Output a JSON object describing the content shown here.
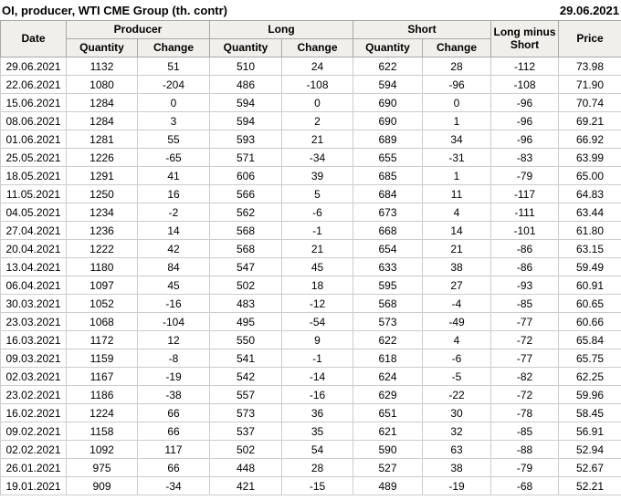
{
  "title": "OI, producer, WTI CME Group (th. contr)",
  "report_date": "29.06.2021",
  "colors": {
    "positive": "#149a14",
    "negative": "#cc2222",
    "header_bg": "#f1efec"
  },
  "table": {
    "headers": {
      "date": "Date",
      "producer_group": "Producer",
      "long_group": "Long",
      "short_group": "Short",
      "quantity": "Quantity",
      "change": "Change",
      "long_minus_short": "Long minus Short",
      "price": "Price"
    },
    "rows": [
      {
        "date": "29.06.2021",
        "producer_quantity": 1132,
        "producer_change": 51,
        "long_quantity": 510,
        "long_change": 24,
        "short_quantity": 622,
        "short_change": 28,
        "long_minus_short": -112,
        "price": "73.98"
      },
      {
        "date": "22.06.2021",
        "producer_quantity": 1080,
        "producer_change": -204,
        "long_quantity": 486,
        "long_change": -108,
        "short_quantity": 594,
        "short_change": -96,
        "long_minus_short": -108,
        "price": "71.90"
      },
      {
        "date": "15.06.2021",
        "producer_quantity": 1284,
        "producer_change": 0,
        "long_quantity": 594,
        "long_change": 0,
        "short_quantity": 690,
        "short_change": 0,
        "long_minus_short": -96,
        "price": "70.74"
      },
      {
        "date": "08.06.2021",
        "producer_quantity": 1284,
        "producer_change": 3,
        "long_quantity": 594,
        "long_change": 2,
        "short_quantity": 690,
        "short_change": 1,
        "long_minus_short": -96,
        "price": "69.21"
      },
      {
        "date": "01.06.2021",
        "producer_quantity": 1281,
        "producer_change": 55,
        "long_quantity": 593,
        "long_change": 21,
        "short_quantity": 689,
        "short_change": 34,
        "long_minus_short": -96,
        "price": "66.92"
      },
      {
        "date": "25.05.2021",
        "producer_quantity": 1226,
        "producer_change": -65,
        "long_quantity": 571,
        "long_change": -34,
        "short_quantity": 655,
        "short_change": -31,
        "long_minus_short": -83,
        "price": "63.99"
      },
      {
        "date": "18.05.2021",
        "producer_quantity": 1291,
        "producer_change": 41,
        "long_quantity": 606,
        "long_change": 39,
        "short_quantity": 685,
        "short_change": 1,
        "long_minus_short": -79,
        "price": "65.00"
      },
      {
        "date": "11.05.2021",
        "producer_quantity": 1250,
        "producer_change": 16,
        "long_quantity": 566,
        "long_change": 5,
        "short_quantity": 684,
        "short_change": 11,
        "long_minus_short": -117,
        "price": "64.83"
      },
      {
        "date": "04.05.2021",
        "producer_quantity": 1234,
        "producer_change": -2,
        "long_quantity": 562,
        "long_change": -6,
        "short_quantity": 673,
        "short_change": 4,
        "long_minus_short": -111,
        "price": "63.44"
      },
      {
        "date": "27.04.2021",
        "producer_quantity": 1236,
        "producer_change": 14,
        "long_quantity": 568,
        "long_change": -1,
        "short_quantity": 668,
        "short_change": 14,
        "long_minus_short": -101,
        "price": "61.80"
      },
      {
        "date": "20.04.2021",
        "producer_quantity": 1222,
        "producer_change": 42,
        "long_quantity": 568,
        "long_change": 21,
        "short_quantity": 654,
        "short_change": 21,
        "long_minus_short": -86,
        "price": "63.15"
      },
      {
        "date": "13.04.2021",
        "producer_quantity": 1180,
        "producer_change": 84,
        "long_quantity": 547,
        "long_change": 45,
        "short_quantity": 633,
        "short_change": 38,
        "long_minus_short": -86,
        "price": "59.49"
      },
      {
        "date": "06.04.2021",
        "producer_quantity": 1097,
        "producer_change": 45,
        "long_quantity": 502,
        "long_change": 18,
        "short_quantity": 595,
        "short_change": 27,
        "long_minus_short": -93,
        "price": "60.91"
      },
      {
        "date": "30.03.2021",
        "producer_quantity": 1052,
        "producer_change": -16,
        "long_quantity": 483,
        "long_change": -12,
        "short_quantity": 568,
        "short_change": -4,
        "long_minus_short": -85,
        "price": "60.65"
      },
      {
        "date": "23.03.2021",
        "producer_quantity": 1068,
        "producer_change": -104,
        "long_quantity": 495,
        "long_change": -54,
        "short_quantity": 573,
        "short_change": -49,
        "long_minus_short": -77,
        "price": "60.66"
      },
      {
        "date": "16.03.2021",
        "producer_quantity": 1172,
        "producer_change": 12,
        "long_quantity": 550,
        "long_change": 9,
        "short_quantity": 622,
        "short_change": 4,
        "long_minus_short": -72,
        "price": "65.84"
      },
      {
        "date": "09.03.2021",
        "producer_quantity": 1159,
        "producer_change": -8,
        "long_quantity": 541,
        "long_change": -1,
        "short_quantity": 618,
        "short_change": -6,
        "long_minus_short": -77,
        "price": "65.75"
      },
      {
        "date": "02.03.2021",
        "producer_quantity": 1167,
        "producer_change": -19,
        "long_quantity": 542,
        "long_change": -14,
        "short_quantity": 624,
        "short_change": -5,
        "long_minus_short": -82,
        "price": "62.25"
      },
      {
        "date": "23.02.2021",
        "producer_quantity": 1186,
        "producer_change": -38,
        "long_quantity": 557,
        "long_change": -16,
        "short_quantity": 629,
        "short_change": -22,
        "long_minus_short": -72,
        "price": "59.96"
      },
      {
        "date": "16.02.2021",
        "producer_quantity": 1224,
        "producer_change": 66,
        "long_quantity": 573,
        "long_change": 36,
        "short_quantity": 651,
        "short_change": 30,
        "long_minus_short": -78,
        "price": "58.45"
      },
      {
        "date": "09.02.2021",
        "producer_quantity": 1158,
        "producer_change": 66,
        "long_quantity": 537,
        "long_change": 35,
        "short_quantity": 621,
        "short_change": 32,
        "long_minus_short": -85,
        "price": "56.91"
      },
      {
        "date": "02.02.2021",
        "producer_quantity": 1092,
        "producer_change": 117,
        "long_quantity": 502,
        "long_change": 54,
        "short_quantity": 590,
        "short_change": 63,
        "long_minus_short": -88,
        "price": "52.94"
      },
      {
        "date": "26.01.2021",
        "producer_quantity": 975,
        "producer_change": 66,
        "long_quantity": 448,
        "long_change": 28,
        "short_quantity": 527,
        "short_change": 38,
        "long_minus_short": -79,
        "price": "52.67"
      },
      {
        "date": "19.01.2021",
        "producer_quantity": 909,
        "producer_change": -34,
        "long_quantity": 421,
        "long_change": -15,
        "short_quantity": 489,
        "short_change": -19,
        "long_minus_short": -68,
        "price": "52.21"
      }
    ]
  }
}
